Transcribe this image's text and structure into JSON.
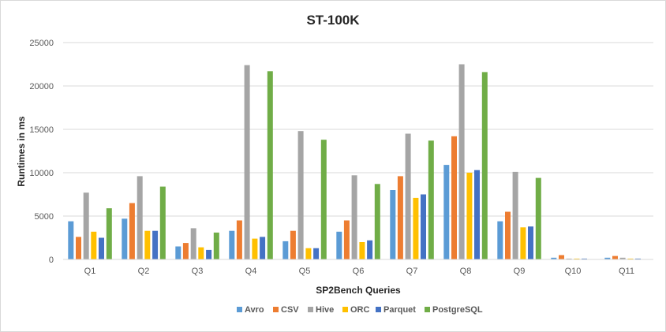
{
  "chart_data": {
    "type": "bar",
    "title": "ST-100K",
    "xlabel": "SP2Bench Queries",
    "ylabel": "Runtimes in ms",
    "ylim": [
      0,
      25000
    ],
    "yticks": [
      "0",
      "5000",
      "10000",
      "15000",
      "20000",
      "25000"
    ],
    "ytick_values": [
      0,
      5000,
      10000,
      15000,
      20000,
      25000
    ],
    "grid": true,
    "legend_position": "bottom",
    "categories": [
      "Q1",
      "Q2",
      "Q3",
      "Q4",
      "Q5",
      "Q6",
      "Q7",
      "Q8",
      "Q9",
      "Q10",
      "Q11"
    ],
    "series": [
      {
        "name": "Avro",
        "color": "#5b9bd5",
        "values": [
          4400,
          4700,
          1500,
          3300,
          2100,
          3200,
          8000,
          10900,
          4400,
          200,
          200
        ]
      },
      {
        "name": "CSV",
        "color": "#ed7d31",
        "values": [
          2600,
          6500,
          1900,
          4500,
          3300,
          4500,
          9600,
          14200,
          5500,
          500,
          400
        ]
      },
      {
        "name": "Hive",
        "color": "#a5a5a5",
        "values": [
          7700,
          9600,
          3600,
          22400,
          14800,
          9700,
          14500,
          22500,
          10100,
          100,
          200
        ]
      },
      {
        "name": "ORC",
        "color": "#ffc000",
        "values": [
          3200,
          3300,
          1400,
          2400,
          1300,
          2000,
          7100,
          10000,
          3700,
          100,
          100
        ]
      },
      {
        "name": "Parquet",
        "color": "#4472c4",
        "values": [
          2500,
          3300,
          1100,
          2600,
          1300,
          2200,
          7500,
          10300,
          3800,
          100,
          100
        ]
      },
      {
        "name": "PostgreSQL",
        "color": "#70ad47",
        "values": [
          5900,
          8400,
          3100,
          21700,
          13800,
          8700,
          13700,
          21600,
          9400,
          0,
          0
        ]
      }
    ]
  }
}
